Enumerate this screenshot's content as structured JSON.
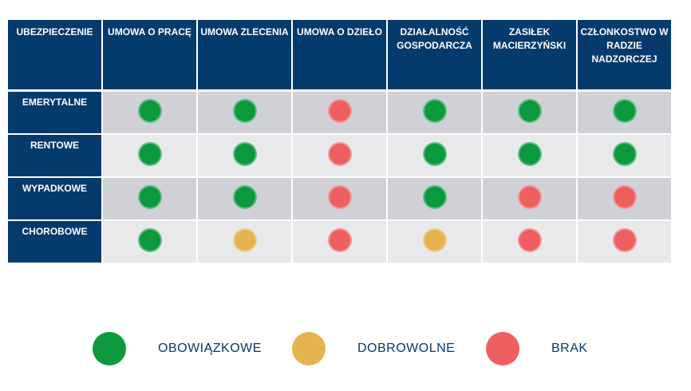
{
  "colors": {
    "header": "#043a6c",
    "obowiazkowe": "#0a9a3c",
    "dobrowolne": "#e6b44f",
    "brak": "#ef5f5f"
  },
  "table": {
    "corner": "UBEZPIECZENIE",
    "columns": [
      "UMOWA O PRACĘ",
      "UMOWA ZLECENIA",
      "UMOWA O DZIEŁO",
      "DZIAŁALNOŚĆ GOSPODARCZA",
      "ZASIŁEK MACIERZYŃSKI",
      "CZŁONKOSTWO W RADZIE NADZORCZEJ"
    ],
    "rows": [
      {
        "label": "EMERYTALNE",
        "values": [
          "obowiazkowe",
          "obowiazkowe",
          "brak",
          "obowiazkowe",
          "obowiazkowe",
          "obowiazkowe"
        ]
      },
      {
        "label": "RENTOWE",
        "values": [
          "obowiazkowe",
          "obowiazkowe",
          "brak",
          "obowiazkowe",
          "obowiazkowe",
          "obowiazkowe"
        ]
      },
      {
        "label": "WYPADKOWE",
        "values": [
          "obowiazkowe",
          "obowiazkowe",
          "brak",
          "obowiazkowe",
          "brak",
          "brak"
        ]
      },
      {
        "label": "CHOROBOWE",
        "values": [
          "obowiazkowe",
          "dobrowolne",
          "brak",
          "dobrowolne",
          "brak",
          "brak"
        ]
      }
    ]
  },
  "legend": [
    {
      "key": "obowiazkowe",
      "label": "OBOWIĄZKOWE"
    },
    {
      "key": "dobrowolne",
      "label": "DOBROWOLNE"
    },
    {
      "key": "brak",
      "label": "BRAK"
    }
  ]
}
